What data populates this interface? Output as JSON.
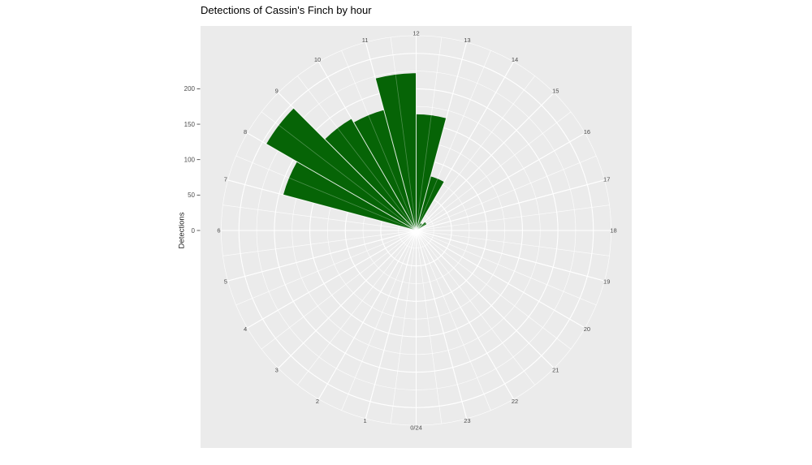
{
  "header": {
    "title": "Detections of Cassin's Finch by hour"
  },
  "chart_data": {
    "type": "bar",
    "subtype": "polar-rose-histogram",
    "title": "Detections of Cassin's Finch by hour",
    "xlabel": "",
    "ylabel": "Detections",
    "orientation": "hour 0 at bottom, hours increase clockwise, 12 at top",
    "bin_width_hours": 1,
    "categories": [
      0,
      1,
      2,
      3,
      4,
      5,
      6,
      7,
      8,
      9,
      10,
      11,
      12,
      13,
      14,
      15,
      16,
      17,
      18,
      19,
      20,
      21,
      22,
      23
    ],
    "values": [
      0,
      0,
      0,
      0,
      0,
      0,
      0,
      194,
      244,
      182,
      176,
      222,
      164,
      79,
      12,
      17,
      0,
      0,
      0,
      0,
      0,
      0,
      0,
      0
    ],
    "hour_labels": [
      "0/24",
      "1",
      "2",
      "3",
      "4",
      "5",
      "6",
      "7",
      "8",
      "9",
      "10",
      "11",
      "12",
      "13",
      "14",
      "15",
      "16",
      "17",
      "18",
      "19",
      "20",
      "21",
      "22",
      "23"
    ],
    "radial_ticks": [
      0,
      50,
      100,
      150,
      200
    ],
    "rlim": [
      0,
      275
    ],
    "grid": {
      "major_step": 50,
      "minor_step": 25,
      "color": "#FFFFFF",
      "panel_bg": "#EBEBEB"
    },
    "bar_color": "#066406",
    "axis_text_color": "#4D4D4D",
    "tick_mark_color": "#333333",
    "legend": "none"
  }
}
